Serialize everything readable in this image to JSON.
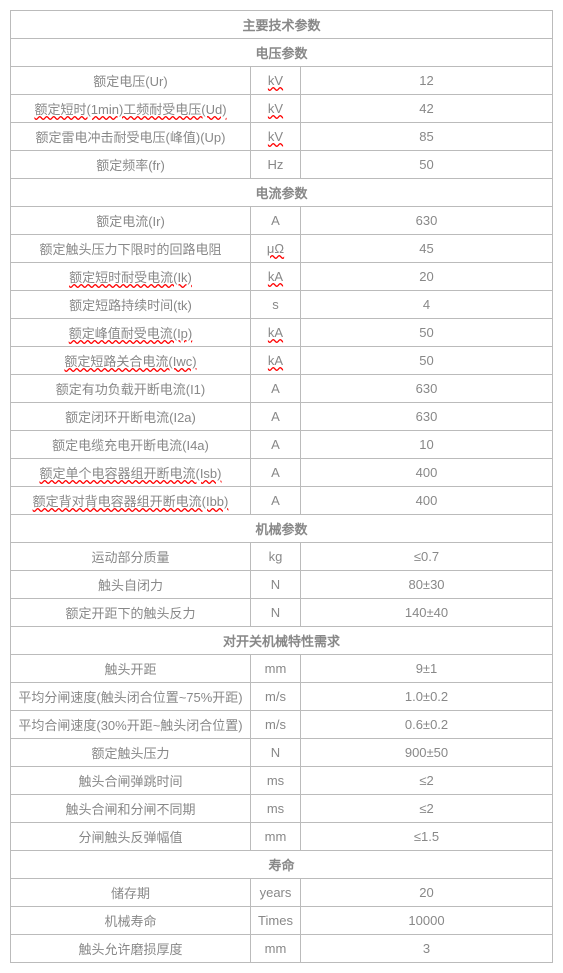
{
  "title": "主要技术参数",
  "sections": [
    {
      "header": "电压参数",
      "rows": [
        {
          "param": "额定电压(Ur)",
          "param_u": false,
          "unit": "kV",
          "unit_u": true,
          "value": "12"
        },
        {
          "param": "额定短时(1min)工频耐受电压(Ud)",
          "param_u": true,
          "unit": "kV",
          "unit_u": true,
          "value": "42"
        },
        {
          "param": "额定雷电冲击耐受电压(峰值)(Up)",
          "param_u": false,
          "unit": "kV",
          "unit_u": true,
          "value": "85"
        },
        {
          "param": "额定频率(fr)",
          "param_u": false,
          "unit": "Hz",
          "unit_u": false,
          "value": "50"
        }
      ]
    },
    {
      "header": "电流参数",
      "rows": [
        {
          "param": "额定电流(Ir)",
          "param_u": false,
          "unit": "A",
          "unit_u": false,
          "value": "630"
        },
        {
          "param": "额定触头压力下限时的回路电阻",
          "param_u": false,
          "unit": "μΩ",
          "unit_u": true,
          "value": "45"
        },
        {
          "param": "额定短时耐受电流(Ik)",
          "param_u": true,
          "unit": "kA",
          "unit_u": true,
          "value": "20"
        },
        {
          "param": "额定短路持续时间(tk)",
          "param_u": false,
          "unit": "s",
          "unit_u": false,
          "value": "4"
        },
        {
          "param": "额定峰值耐受电流(Ip)",
          "param_u": true,
          "unit": "kA",
          "unit_u": true,
          "value": "50"
        },
        {
          "param": "额定短路关合电流(Iwc)",
          "param_u": true,
          "unit": "kA",
          "unit_u": true,
          "value": "50"
        },
        {
          "param": "额定有功负载开断电流(I1)",
          "param_u": false,
          "unit": "A",
          "unit_u": false,
          "value": "630"
        },
        {
          "param": "额定闭环开断电流(I2a)",
          "param_u": false,
          "unit": "A",
          "unit_u": false,
          "value": "630"
        },
        {
          "param": "额定电缆充电开断电流(I4a)",
          "param_u": false,
          "unit": "A",
          "unit_u": false,
          "value": "10"
        },
        {
          "param": "额定单个电容器组开断电流(Isb)",
          "param_u": true,
          "unit": "A",
          "unit_u": false,
          "value": "400"
        },
        {
          "param": "额定背对背电容器组开断电流(Ibb)",
          "param_u": true,
          "unit": "A",
          "unit_u": false,
          "value": "400"
        }
      ]
    },
    {
      "header": "机械参数",
      "rows": [
        {
          "param": "运动部分质量",
          "param_u": false,
          "unit": "kg",
          "unit_u": false,
          "value": "≤0.7"
        },
        {
          "param": "触头自闭力",
          "param_u": false,
          "unit": "N",
          "unit_u": false,
          "value": "80±30"
        },
        {
          "param": "额定开距下的触头反力",
          "param_u": false,
          "unit": "N",
          "unit_u": false,
          "value": "140±40"
        }
      ]
    },
    {
      "header": "对开关机械特性需求",
      "rows": [
        {
          "param": "触头开距",
          "param_u": false,
          "unit": "mm",
          "unit_u": false,
          "value": "9±1"
        },
        {
          "param": "平均分闸速度(触头闭合位置~75%开距)",
          "param_u": false,
          "unit": "m/s",
          "unit_u": false,
          "value": "1.0±0.2"
        },
        {
          "param": "平均合闸速度(30%开距~触头闭合位置)",
          "param_u": false,
          "unit": "m/s",
          "unit_u": false,
          "value": "0.6±0.2"
        },
        {
          "param": "额定触头压力",
          "param_u": false,
          "unit": "N",
          "unit_u": false,
          "value": "900±50"
        },
        {
          "param": "触头合闸弹跳时间",
          "param_u": false,
          "unit": "ms",
          "unit_u": false,
          "value": "≤2"
        },
        {
          "param": "触头合闸和分闸不同期",
          "param_u": false,
          "unit": "ms",
          "unit_u": false,
          "value": "≤2"
        },
        {
          "param": "分闸触头反弹幅值",
          "param_u": false,
          "unit": "mm",
          "unit_u": false,
          "value": "≤1.5"
        }
      ]
    },
    {
      "header": "寿命",
      "rows": [
        {
          "param": "储存期",
          "param_u": false,
          "unit": "years",
          "unit_u": false,
          "value": "20"
        },
        {
          "param": "机械寿命",
          "param_u": false,
          "unit": "Times",
          "unit_u": false,
          "value": "10000"
        },
        {
          "param": "触头允许磨损厚度",
          "param_u": false,
          "unit": "mm",
          "unit_u": false,
          "value": "3"
        }
      ]
    }
  ]
}
